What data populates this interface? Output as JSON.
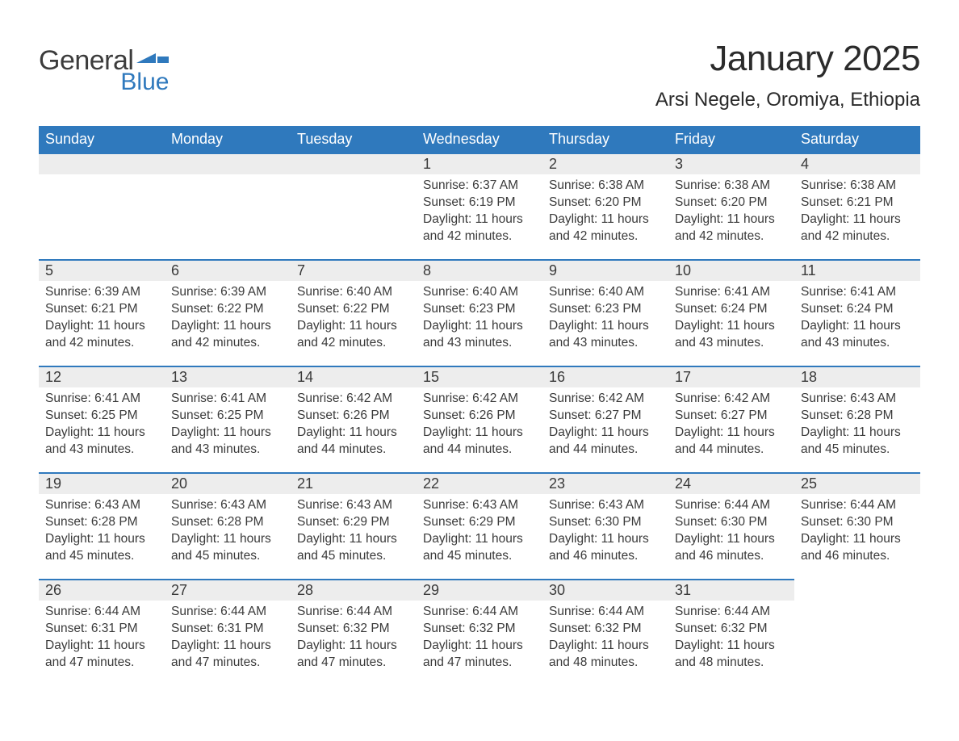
{
  "logo": {
    "word1": "General",
    "word2": "Blue"
  },
  "title": "January 2025",
  "location": "Arsi Negele, Oromiya, Ethiopia",
  "colors": {
    "header_bg": "#2f79bd",
    "header_text": "#ffffff",
    "band_bg": "#ededed",
    "rule": "#2f79bd",
    "text": "#3a3a3a",
    "page_bg": "#ffffff"
  },
  "columns": [
    "Sunday",
    "Monday",
    "Tuesday",
    "Wednesday",
    "Thursday",
    "Friday",
    "Saturday"
  ],
  "labels": {
    "sunrise": "Sunrise:",
    "sunset": "Sunset:",
    "daylight": "Daylight:"
  },
  "weeks": [
    [
      null,
      null,
      null,
      {
        "n": "1",
        "sunrise": "6:37 AM",
        "sunset": "6:19 PM",
        "daylight": "11 hours and 42 minutes."
      },
      {
        "n": "2",
        "sunrise": "6:38 AM",
        "sunset": "6:20 PM",
        "daylight": "11 hours and 42 minutes."
      },
      {
        "n": "3",
        "sunrise": "6:38 AM",
        "sunset": "6:20 PM",
        "daylight": "11 hours and 42 minutes."
      },
      {
        "n": "4",
        "sunrise": "6:38 AM",
        "sunset": "6:21 PM",
        "daylight": "11 hours and 42 minutes."
      }
    ],
    [
      {
        "n": "5",
        "sunrise": "6:39 AM",
        "sunset": "6:21 PM",
        "daylight": "11 hours and 42 minutes."
      },
      {
        "n": "6",
        "sunrise": "6:39 AM",
        "sunset": "6:22 PM",
        "daylight": "11 hours and 42 minutes."
      },
      {
        "n": "7",
        "sunrise": "6:40 AM",
        "sunset": "6:22 PM",
        "daylight": "11 hours and 42 minutes."
      },
      {
        "n": "8",
        "sunrise": "6:40 AM",
        "sunset": "6:23 PM",
        "daylight": "11 hours and 43 minutes."
      },
      {
        "n": "9",
        "sunrise": "6:40 AM",
        "sunset": "6:23 PM",
        "daylight": "11 hours and 43 minutes."
      },
      {
        "n": "10",
        "sunrise": "6:41 AM",
        "sunset": "6:24 PM",
        "daylight": "11 hours and 43 minutes."
      },
      {
        "n": "11",
        "sunrise": "6:41 AM",
        "sunset": "6:24 PM",
        "daylight": "11 hours and 43 minutes."
      }
    ],
    [
      {
        "n": "12",
        "sunrise": "6:41 AM",
        "sunset": "6:25 PM",
        "daylight": "11 hours and 43 minutes."
      },
      {
        "n": "13",
        "sunrise": "6:41 AM",
        "sunset": "6:25 PM",
        "daylight": "11 hours and 43 minutes."
      },
      {
        "n": "14",
        "sunrise": "6:42 AM",
        "sunset": "6:26 PM",
        "daylight": "11 hours and 44 minutes."
      },
      {
        "n": "15",
        "sunrise": "6:42 AM",
        "sunset": "6:26 PM",
        "daylight": "11 hours and 44 minutes."
      },
      {
        "n": "16",
        "sunrise": "6:42 AM",
        "sunset": "6:27 PM",
        "daylight": "11 hours and 44 minutes."
      },
      {
        "n": "17",
        "sunrise": "6:42 AM",
        "sunset": "6:27 PM",
        "daylight": "11 hours and 44 minutes."
      },
      {
        "n": "18",
        "sunrise": "6:43 AM",
        "sunset": "6:28 PM",
        "daylight": "11 hours and 45 minutes."
      }
    ],
    [
      {
        "n": "19",
        "sunrise": "6:43 AM",
        "sunset": "6:28 PM",
        "daylight": "11 hours and 45 minutes."
      },
      {
        "n": "20",
        "sunrise": "6:43 AM",
        "sunset": "6:28 PM",
        "daylight": "11 hours and 45 minutes."
      },
      {
        "n": "21",
        "sunrise": "6:43 AM",
        "sunset": "6:29 PM",
        "daylight": "11 hours and 45 minutes."
      },
      {
        "n": "22",
        "sunrise": "6:43 AM",
        "sunset": "6:29 PM",
        "daylight": "11 hours and 45 minutes."
      },
      {
        "n": "23",
        "sunrise": "6:43 AM",
        "sunset": "6:30 PM",
        "daylight": "11 hours and 46 minutes."
      },
      {
        "n": "24",
        "sunrise": "6:44 AM",
        "sunset": "6:30 PM",
        "daylight": "11 hours and 46 minutes."
      },
      {
        "n": "25",
        "sunrise": "6:44 AM",
        "sunset": "6:30 PM",
        "daylight": "11 hours and 46 minutes."
      }
    ],
    [
      {
        "n": "26",
        "sunrise": "6:44 AM",
        "sunset": "6:31 PM",
        "daylight": "11 hours and 47 minutes."
      },
      {
        "n": "27",
        "sunrise": "6:44 AM",
        "sunset": "6:31 PM",
        "daylight": "11 hours and 47 minutes."
      },
      {
        "n": "28",
        "sunrise": "6:44 AM",
        "sunset": "6:32 PM",
        "daylight": "11 hours and 47 minutes."
      },
      {
        "n": "29",
        "sunrise": "6:44 AM",
        "sunset": "6:32 PM",
        "daylight": "11 hours and 47 minutes."
      },
      {
        "n": "30",
        "sunrise": "6:44 AM",
        "sunset": "6:32 PM",
        "daylight": "11 hours and 48 minutes."
      },
      {
        "n": "31",
        "sunrise": "6:44 AM",
        "sunset": "6:32 PM",
        "daylight": "11 hours and 48 minutes."
      },
      null
    ]
  ]
}
